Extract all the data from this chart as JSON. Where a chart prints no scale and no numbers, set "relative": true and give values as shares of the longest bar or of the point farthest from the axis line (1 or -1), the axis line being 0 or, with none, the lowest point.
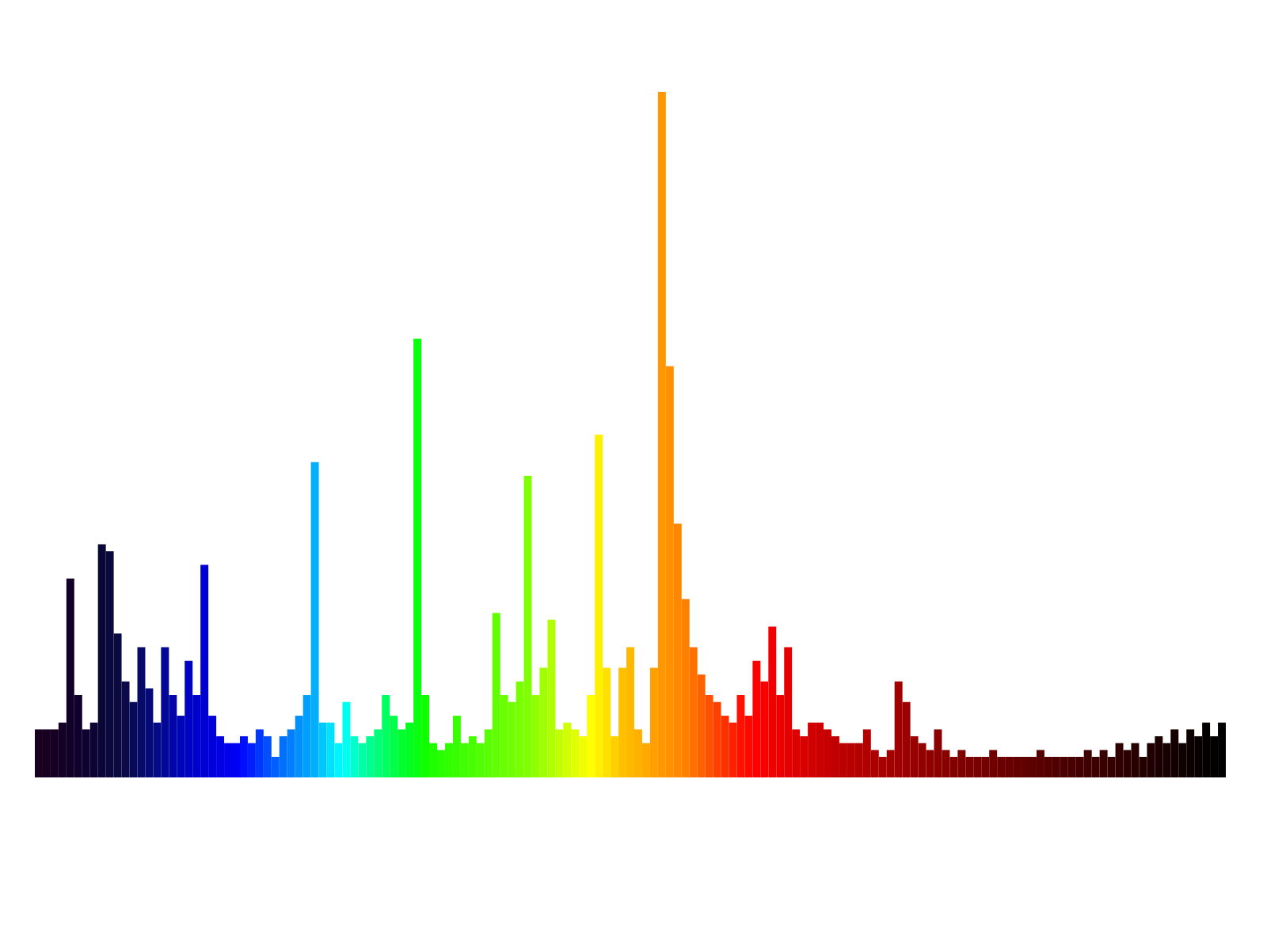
{
  "chart_data": {
    "type": "bar",
    "relative": true,
    "categories": [
      null,
      null,
      null,
      null,
      null,
      null,
      null,
      null,
      null,
      null,
      null,
      null,
      null,
      null,
      null,
      null,
      null,
      null,
      null,
      null,
      null,
      null,
      null,
      null,
      null,
      null,
      null,
      null,
      null,
      null,
      null,
      null,
      null,
      null,
      null,
      null,
      null,
      null,
      null,
      null,
      null,
      null,
      null,
      null,
      null,
      null,
      null,
      null,
      null,
      null,
      null,
      null,
      null,
      null,
      null,
      null,
      null,
      null,
      null,
      null,
      null,
      null,
      null,
      null,
      null,
      null,
      null,
      null,
      null,
      null,
      null,
      null,
      null,
      null,
      null,
      null,
      null,
      null,
      null,
      null,
      null,
      null,
      null,
      null,
      null,
      null,
      null,
      null,
      null,
      null,
      null,
      null,
      null,
      null,
      null,
      null,
      null,
      null,
      null,
      null,
      null,
      null,
      null,
      null,
      null,
      null,
      null,
      null,
      null,
      null,
      null,
      null,
      null,
      null,
      null,
      null,
      null,
      null,
      null,
      null,
      null,
      null,
      null,
      null,
      null,
      null,
      null,
      null,
      null,
      null,
      null,
      null,
      null,
      null,
      null,
      null,
      null,
      null,
      null,
      null,
      null,
      null,
      null,
      null,
      null,
      null,
      null,
      null,
      null,
      null,
      null
    ],
    "values": [
      0.07,
      0.07,
      0.07,
      0.08,
      0.29,
      0.12,
      0.07,
      0.08,
      0.34,
      0.33,
      0.21,
      0.14,
      0.11,
      0.19,
      0.13,
      0.08,
      0.19,
      0.12,
      0.09,
      0.17,
      0.12,
      0.31,
      0.09,
      0.06,
      0.05,
      0.05,
      0.06,
      0.05,
      0.07,
      0.06,
      0.03,
      0.06,
      0.07,
      0.09,
      0.12,
      0.46,
      0.08,
      0.08,
      0.05,
      0.11,
      0.06,
      0.05,
      0.06,
      0.07,
      0.12,
      0.09,
      0.07,
      0.08,
      0.64,
      0.12,
      0.05,
      0.04,
      0.05,
      0.09,
      0.05,
      0.06,
      0.05,
      0.07,
      0.24,
      0.12,
      0.11,
      0.14,
      0.44,
      0.12,
      0.16,
      0.23,
      0.07,
      0.08,
      0.07,
      0.06,
      0.12,
      0.5,
      0.16,
      0.06,
      0.16,
      0.19,
      0.07,
      0.05,
      0.16,
      1,
      0.6,
      0.37,
      0.26,
      0.19,
      0.15,
      0.12,
      0.11,
      0.09,
      0.08,
      0.12,
      0.09,
      0.17,
      0.14,
      0.22,
      0.12,
      0.19,
      0.07,
      0.06,
      0.08,
      0.08,
      0.07,
      0.06,
      0.05,
      0.05,
      0.05,
      0.07,
      0.04,
      0.03,
      0.04,
      0.14,
      0.11,
      0.06,
      0.05,
      0.04,
      0.07,
      0.04,
      0.03,
      0.04,
      0.03,
      0.03,
      0.03,
      0.04,
      0.03,
      0.03,
      0.03,
      0.03,
      0.03,
      0.04,
      0.03,
      0.03,
      0.03,
      0.03,
      0.03,
      0.04,
      0.03,
      0.04,
      0.03,
      0.05,
      0.04,
      0.05,
      0.03,
      0.05,
      0.06,
      0.05,
      0.07,
      0.05,
      0.07,
      0.06,
      0.08,
      0.06,
      0.08
    ],
    "colors": [
      "#1a0020",
      "#180022",
      "#160024",
      "#140026",
      "#120028",
      "#10002c",
      "#0e0230",
      "#0c0434",
      "#0a0638",
      "#0a083c",
      "#0a0a40",
      "#0a0a48",
      "#080a58",
      "#060a68",
      "#050a78",
      "#040a88",
      "#030898",
      "#0206a8",
      "#0104b8",
      "#0002c4",
      "#0000cc",
      "#0000d4",
      "#0000dc",
      "#0000e4",
      "#0000ec",
      "#0000f4",
      "#0010ff",
      "#0020ff",
      "#0038ff",
      "#0050ff",
      "#0060ff",
      "#0070ff",
      "#0080ff",
      "#0090ff",
      "#00a0ff",
      "#00b0ff",
      "#00c8ff",
      "#00e0ff",
      "#00f4ff",
      "#00ffee",
      "#00ffcc",
      "#00ffaa",
      "#00ff90",
      "#00ff78",
      "#00ff60",
      "#00ff48",
      "#00ff30",
      "#00ff20",
      "#08ff10",
      "#10ff00",
      "#20ff00",
      "#28ff00",
      "#30ff00",
      "#38ff00",
      "#40ff00",
      "#48ff00",
      "#50ff00",
      "#58ff00",
      "#60ff00",
      "#68ff00",
      "#70ff00",
      "#78ff00",
      "#80ff00",
      "#90ff00",
      "#a0ff00",
      "#b0ff00",
      "#c0ff00",
      "#d0ff00",
      "#e0ff00",
      "#f0ff00",
      "#ffff00",
      "#fff000",
      "#ffe000",
      "#ffd000",
      "#ffc000",
      "#ffb800",
      "#ffb000",
      "#ffa800",
      "#ffa000",
      "#ff9800",
      "#ff9000",
      "#ff8800",
      "#ff8000",
      "#ff7000",
      "#ff6000",
      "#ff5000",
      "#ff4000",
      "#ff3000",
      "#ff2000",
      "#ff1000",
      "#ff0800",
      "#ff0000",
      "#f80000",
      "#f00000",
      "#ea0000",
      "#e40000",
      "#de0000",
      "#d80000",
      "#d20000",
      "#cc0000",
      "#c60000",
      "#c00000",
      "#bc0000",
      "#b80000",
      "#b40000",
      "#b00000",
      "#ac0000",
      "#a80000",
      "#a40000",
      "#a00000",
      "#9c0000",
      "#980000",
      "#940000",
      "#900000",
      "#8c0000",
      "#880000",
      "#840000",
      "#800000",
      "#7c0000",
      "#780000",
      "#740000",
      "#700000",
      "#6c0000",
      "#680000",
      "#640000",
      "#600000",
      "#5c0000",
      "#580000",
      "#540000",
      "#500000",
      "#4c0000",
      "#480000",
      "#440000",
      "#400000",
      "#3c0000",
      "#380000",
      "#340000",
      "#300000",
      "#2c0000",
      "#280000",
      "#240000",
      "#200000",
      "#1c0000",
      "#180000",
      "#140000",
      "#100000",
      "#0c0000",
      "#080000",
      "#040000",
      "#020000",
      "#000000"
    ]
  }
}
